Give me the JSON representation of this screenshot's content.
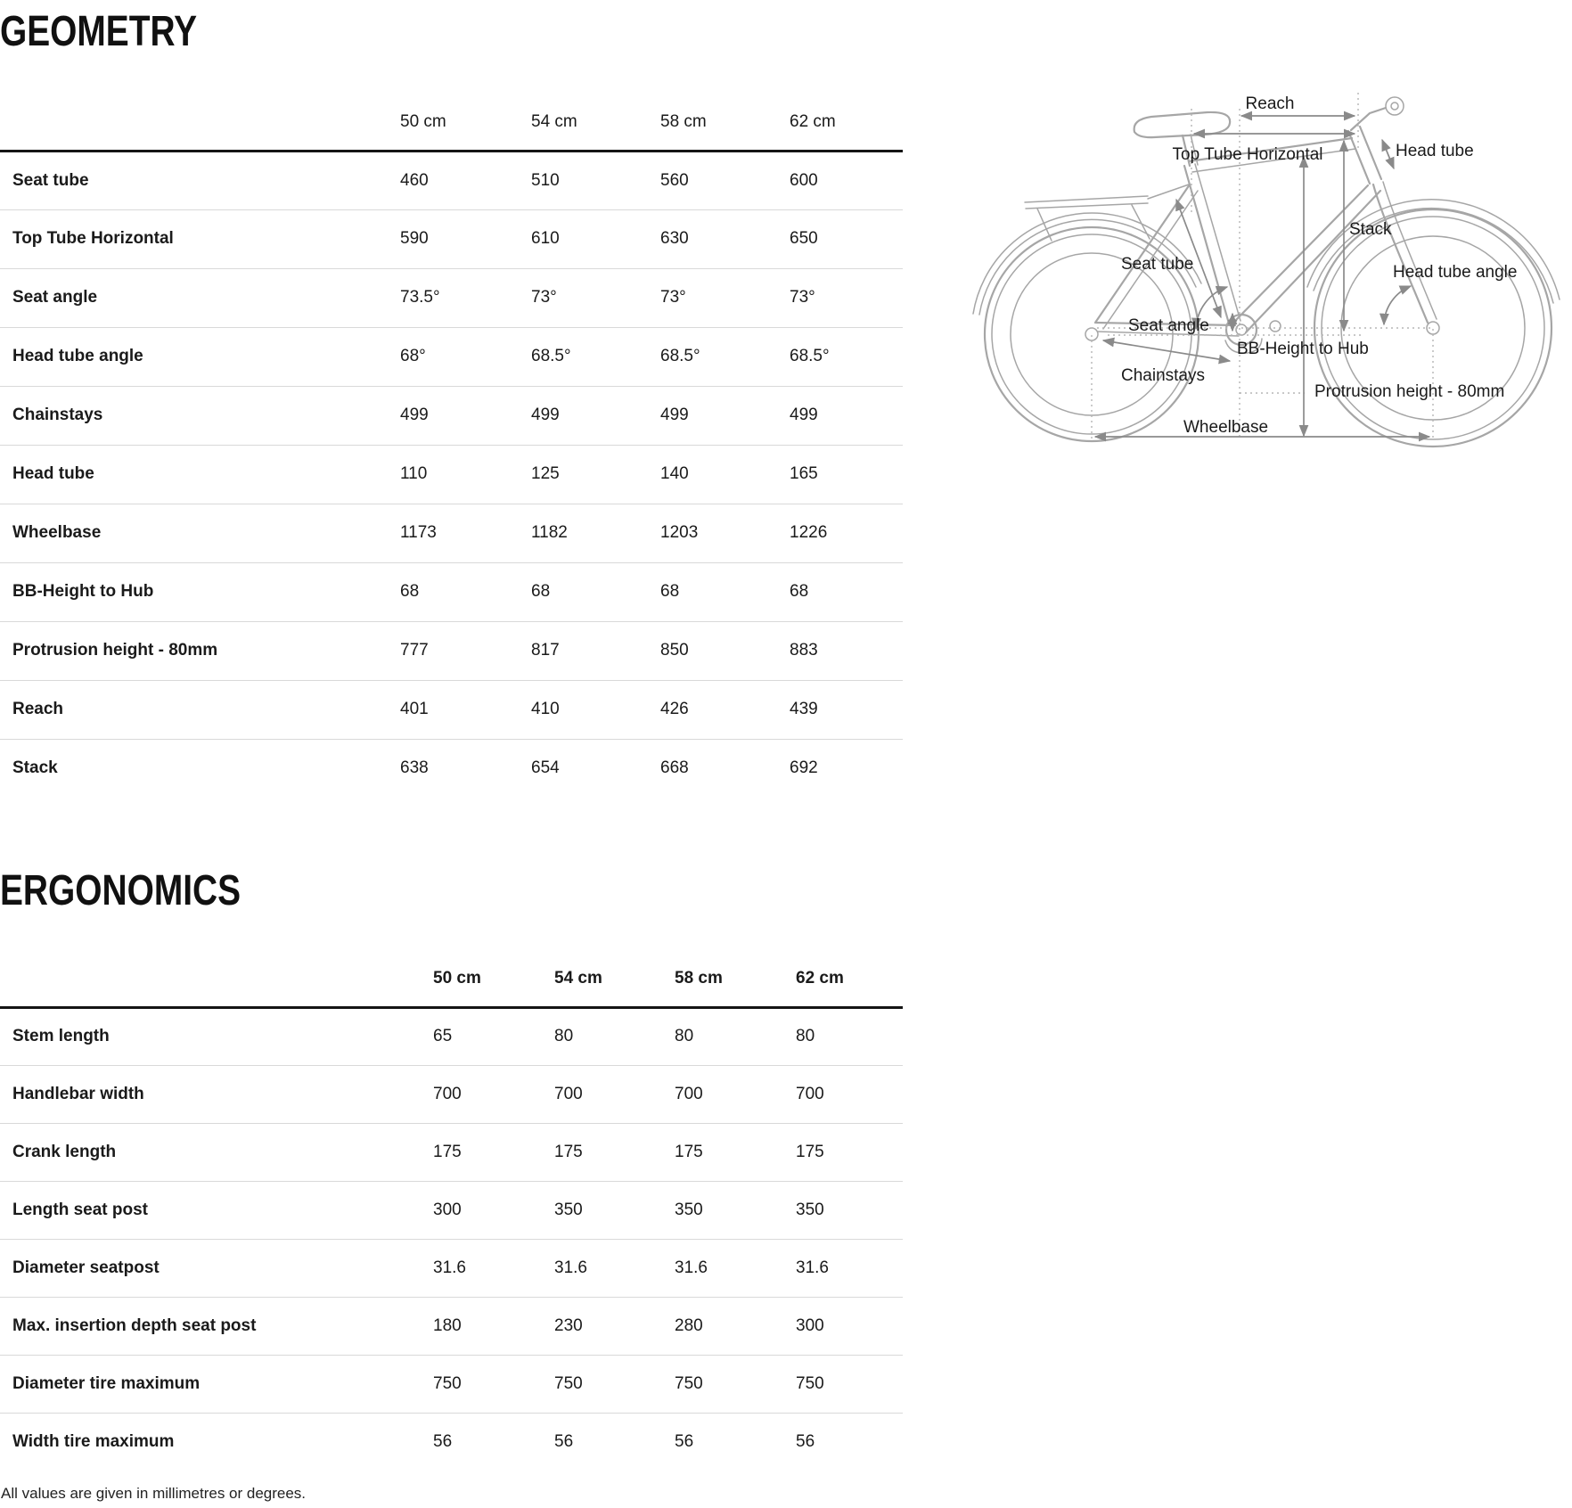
{
  "geometry": {
    "title": "GEOMETRY",
    "columns": [
      "50 cm",
      "54 cm",
      "58 cm",
      "62 cm"
    ],
    "rows": [
      {
        "label": "Seat tube",
        "values": [
          "460",
          "510",
          "560",
          "600"
        ]
      },
      {
        "label": "Top Tube Horizontal",
        "values": [
          "590",
          "610",
          "630",
          "650"
        ]
      },
      {
        "label": "Seat angle",
        "values": [
          "73.5°",
          "73°",
          "73°",
          "73°"
        ]
      },
      {
        "label": "Head tube angle",
        "values": [
          "68°",
          "68.5°",
          "68.5°",
          "68.5°"
        ]
      },
      {
        "label": "Chainstays",
        "values": [
          "499",
          "499",
          "499",
          "499"
        ]
      },
      {
        "label": "Head tube",
        "values": [
          "110",
          "125",
          "140",
          "165"
        ]
      },
      {
        "label": "Wheelbase",
        "values": [
          "1173",
          "1182",
          "1203",
          "1226"
        ]
      },
      {
        "label": "BB-Height to Hub",
        "values": [
          "68",
          "68",
          "68",
          "68"
        ]
      },
      {
        "label": "Protrusion height - 80mm",
        "values": [
          "777",
          "817",
          "850",
          "883"
        ]
      },
      {
        "label": "Reach",
        "values": [
          "401",
          "410",
          "426",
          "439"
        ]
      },
      {
        "label": "Stack",
        "values": [
          "638",
          "654",
          "668",
          "692"
        ]
      }
    ]
  },
  "ergonomics": {
    "title": "ERGONOMICS",
    "columns": [
      "50 cm",
      "54 cm",
      "58 cm",
      "62 cm"
    ],
    "rows": [
      {
        "label": "Stem length",
        "values": [
          "65",
          "80",
          "80",
          "80"
        ]
      },
      {
        "label": "Handlebar width",
        "values": [
          "700",
          "700",
          "700",
          "700"
        ]
      },
      {
        "label": "Crank length",
        "values": [
          "175",
          "175",
          "175",
          "175"
        ]
      },
      {
        "label": "Length seat post",
        "values": [
          "300",
          "350",
          "350",
          "350"
        ]
      },
      {
        "label": "Diameter seatpost",
        "values": [
          "31.6",
          "31.6",
          "31.6",
          "31.6"
        ]
      },
      {
        "label": "Max. insertion depth seat post",
        "values": [
          "180",
          "230",
          "280",
          "300"
        ]
      },
      {
        "label": "Diameter tire maximum",
        "values": [
          "750",
          "750",
          "750",
          "750"
        ]
      },
      {
        "label": "Width tire maximum",
        "values": [
          "56",
          "56",
          "56",
          "56"
        ]
      }
    ]
  },
  "diagram": {
    "labels": [
      {
        "text": "Reach"
      },
      {
        "text": "Top Tube Horizontal"
      },
      {
        "text": "Head tube"
      },
      {
        "text": "Seat tube"
      },
      {
        "text": "Stack"
      },
      {
        "text": "Head tube angle"
      },
      {
        "text": "Seat angle"
      },
      {
        "text": "BB-Height to Hub"
      },
      {
        "text": "Chainstays"
      },
      {
        "text": "Protrusion height - 80mm"
      },
      {
        "text": "Wheelbase"
      }
    ]
  },
  "footnote": "All values are given in millimetres or degrees.",
  "colors": {
    "text": "#1a1a1a",
    "header_line": "#151515",
    "row_separator": "#d9d9d9",
    "sketch_line": "#a6a6a6",
    "dimension_line": "#8a8a8a"
  }
}
